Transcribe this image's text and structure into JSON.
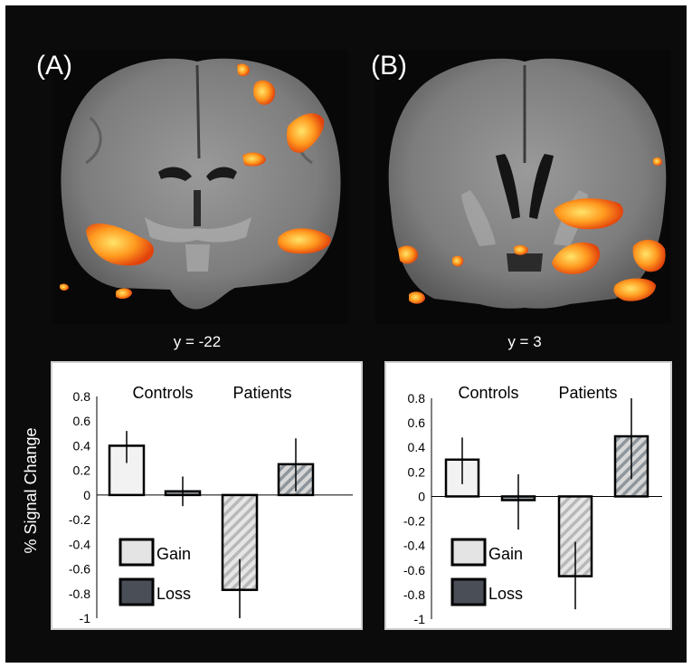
{
  "figure": {
    "panel_a_label": "(A)",
    "panel_b_label": "(B)",
    "slice_a_label": "y = -22",
    "slice_b_label": "y = 3",
    "y_axis_label": "% Signal Change"
  },
  "colors": {
    "background": "#0b0b0b",
    "gain_fill": "#f0f0f0",
    "loss_fill": "#4a4f57",
    "hatch_stripe": "#b8b8b8",
    "activation_core": "#ffd84a",
    "activation_edge": "#e8440f"
  },
  "chart_data": [
    {
      "type": "bar",
      "panel": "A",
      "groups": [
        "Controls",
        "Patients"
      ],
      "legend": [
        "Gain",
        "Loss"
      ],
      "ylim": [
        -1,
        0.8
      ],
      "yticks": [
        "0.8",
        "0.6",
        "0.4",
        "0.2",
        "0",
        "-0.2",
        "-0.4",
        "-0.6",
        "-0.8",
        "-1"
      ],
      "series": [
        {
          "name": "Gain",
          "values": [
            0.4,
            -0.77
          ],
          "err_low": [
            0.26,
            -1.0
          ],
          "err_high": [
            0.52,
            -0.52
          ]
        },
        {
          "name": "Loss",
          "values": [
            0.03,
            0.25
          ],
          "err_low": [
            -0.09,
            0.03
          ],
          "err_high": [
            0.15,
            0.46
          ]
        }
      ]
    },
    {
      "type": "bar",
      "panel": "B",
      "groups": [
        "Controls",
        "Patients"
      ],
      "legend": [
        "Gain",
        "Loss"
      ],
      "ylim": [
        -1,
        0.8
      ],
      "yticks": [
        "0.8",
        "0.6",
        "0.4",
        "0.2",
        "0",
        "-0.2",
        "-0.4",
        "-0.6",
        "-0.8",
        "-1"
      ],
      "series": [
        {
          "name": "Gain",
          "values": [
            0.3,
            -0.65
          ],
          "err_low": [
            0.1,
            -0.92
          ],
          "err_high": [
            0.48,
            -0.37
          ]
        },
        {
          "name": "Loss",
          "values": [
            -0.03,
            0.49
          ],
          "err_low": [
            -0.27,
            0.14
          ],
          "err_high": [
            0.18,
            0.8
          ]
        }
      ]
    }
  ]
}
